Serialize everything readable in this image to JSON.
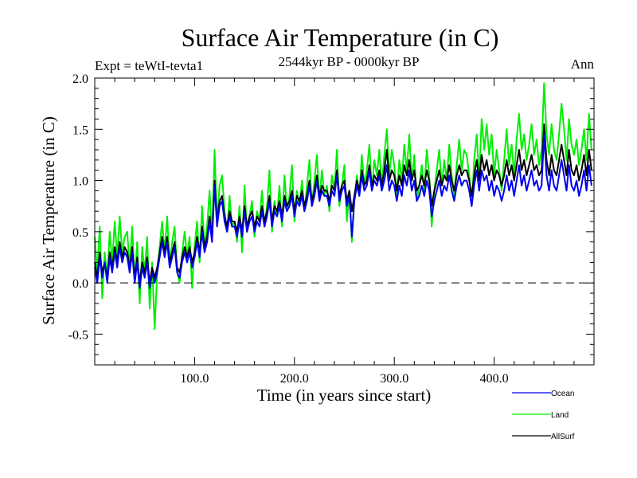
{
  "chart_data": {
    "type": "line",
    "title": "Surface Air Temperature (in C)",
    "subtitle": "2544kyr BP - 0000kyr BP",
    "left_label": "Expt = teWtI-tevta1",
    "right_label": "Ann",
    "xlabel": "Time (in years since start)",
    "ylabel": "Surface Air Temperature (in C)",
    "xlim": [
      0,
      500
    ],
    "ylim": [
      -0.8,
      2.0
    ],
    "x_ticks": [
      100,
      200,
      300,
      400
    ],
    "x_tick_labels": [
      "100.0",
      "200.0",
      "300.0",
      "400.0"
    ],
    "x_minor_step": 20,
    "y_ticks": [
      -0.5,
      0.0,
      0.5,
      1.0,
      1.5,
      2.0
    ],
    "y_tick_labels": [
      "-0.5",
      "0.0",
      "0.5",
      "1.0",
      "1.5",
      "2.0"
    ],
    "y_minor_step": 0.1,
    "reference_line": {
      "y": 0.0,
      "style": "dashed"
    },
    "grid": false,
    "legend": {
      "placement": "bottom-right",
      "entries": [
        "Ocean",
        "Land",
        "AllSurf"
      ]
    },
    "x_step": 2.5,
    "series": [
      {
        "name": "Land",
        "color": "#00ee00",
        "values": [
          0.45,
          0.1,
          0.55,
          -0.15,
          0.3,
          0.05,
          0.5,
          0.2,
          0.6,
          0.25,
          0.65,
          0.3,
          0.45,
          0.5,
          0.15,
          0.55,
          0.0,
          0.4,
          -0.2,
          0.35,
          0.1,
          0.45,
          -0.25,
          0.2,
          -0.45,
          0.1,
          0.35,
          0.6,
          0.3,
          0.65,
          0.2,
          0.4,
          0.55,
          0.1,
          0.0,
          0.3,
          0.5,
          0.25,
          0.45,
          -0.05,
          0.35,
          0.6,
          0.2,
          0.75,
          0.35,
          0.55,
          0.9,
          0.45,
          1.3,
          0.6,
          0.95,
          1.05,
          0.7,
          0.5,
          0.85,
          0.55,
          0.6,
          0.4,
          0.75,
          0.3,
          0.95,
          0.5,
          0.65,
          0.8,
          0.45,
          0.7,
          0.6,
          0.9,
          0.55,
          0.75,
          1.1,
          0.5,
          0.8,
          0.65,
          0.95,
          0.55,
          1.05,
          0.7,
          0.85,
          1.15,
          0.6,
          0.9,
          0.75,
          1.0,
          0.7,
          0.95,
          1.2,
          0.75,
          1.0,
          1.25,
          0.8,
          1.1,
          0.85,
          0.95,
          0.7,
          1.05,
          0.9,
          1.3,
          0.75,
          0.95,
          1.15,
          0.6,
          0.9,
          0.4,
          0.8,
          1.05,
          0.85,
          1.25,
          0.95,
          1.1,
          1.35,
          0.9,
          1.2,
          1.05,
          1.3,
          0.95,
          1.25,
          1.5,
          1.05,
          1.3,
          1.15,
          0.85,
          1.2,
          1.0,
          1.35,
          1.1,
          1.45,
          1.0,
          1.25,
          0.8,
          0.95,
          1.15,
          0.9,
          1.3,
          1.05,
          0.55,
          0.9,
          1.1,
          1.3,
          0.95,
          1.2,
          1.0,
          1.35,
          1.05,
          0.85,
          1.15,
          1.4,
          1.1,
          1.3,
          1.25,
          1.05,
          0.75,
          1.2,
          1.45,
          1.0,
          1.6,
          1.3,
          1.55,
          1.25,
          1.45,
          1.05,
          1.3,
          1.1,
          0.9,
          1.2,
          1.5,
          1.15,
          1.35,
          1.05,
          1.4,
          1.65,
          1.3,
          1.45,
          1.2,
          1.35,
          1.55,
          1.25,
          1.4,
          1.15,
          1.3,
          1.95,
          1.45,
          1.25,
          1.55,
          1.3,
          1.2,
          1.45,
          1.75,
          1.5,
          1.2,
          1.6,
          1.35,
          1.25,
          1.4,
          1.15,
          1.3,
          1.5,
          1.2,
          1.65,
          1.3
        ]
      },
      {
        "name": "AllSurf",
        "color": "#000000",
        "values": [
          0.2,
          0.05,
          0.3,
          0.1,
          0.2,
          0.05,
          0.3,
          0.15,
          0.35,
          0.2,
          0.4,
          0.25,
          0.35,
          0.3,
          0.15,
          0.35,
          0.05,
          0.25,
          0.0,
          0.2,
          0.1,
          0.25,
          0.0,
          0.15,
          0.05,
          0.15,
          0.3,
          0.45,
          0.3,
          0.45,
          0.2,
          0.3,
          0.4,
          0.15,
          0.1,
          0.25,
          0.35,
          0.25,
          0.35,
          0.2,
          0.3,
          0.45,
          0.3,
          0.55,
          0.35,
          0.45,
          0.65,
          0.45,
          1.0,
          0.6,
          0.8,
          0.85,
          0.65,
          0.55,
          0.7,
          0.6,
          0.6,
          0.5,
          0.65,
          0.5,
          0.75,
          0.55,
          0.65,
          0.7,
          0.55,
          0.65,
          0.6,
          0.75,
          0.6,
          0.7,
          0.85,
          0.6,
          0.75,
          0.7,
          0.8,
          0.65,
          0.85,
          0.75,
          0.8,
          0.9,
          0.7,
          0.85,
          0.8,
          0.9,
          0.75,
          0.85,
          1.0,
          0.8,
          0.9,
          1.05,
          0.85,
          0.95,
          0.9,
          0.9,
          0.8,
          0.95,
          0.9,
          1.1,
          0.85,
          0.95,
          1.0,
          0.8,
          0.9,
          0.7,
          0.85,
          1.0,
          0.9,
          1.1,
          0.95,
          1.0,
          1.15,
          0.95,
          1.05,
          1.0,
          1.1,
          0.95,
          1.1,
          1.3,
          1.0,
          1.1,
          1.05,
          0.9,
          1.05,
          0.95,
          1.15,
          1.05,
          1.2,
          1.0,
          1.1,
          0.9,
          0.95,
          1.05,
          0.95,
          1.1,
          1.0,
          0.75,
          0.9,
          1.0,
          1.1,
          0.95,
          1.05,
          1.0,
          1.15,
          1.0,
          0.9,
          1.05,
          1.15,
          1.05,
          1.1,
          1.1,
          1.0,
          0.85,
          1.05,
          1.2,
          1.0,
          1.25,
          1.1,
          1.2,
          1.05,
          1.15,
          1.0,
          1.1,
          1.05,
          0.95,
          1.05,
          1.2,
          1.05,
          1.15,
          1.0,
          1.15,
          1.3,
          1.1,
          1.2,
          1.05,
          1.15,
          1.25,
          1.1,
          1.15,
          1.05,
          1.1,
          1.55,
          1.2,
          1.05,
          1.25,
          1.1,
          1.05,
          1.2,
          1.35,
          1.2,
          1.05,
          1.3,
          1.1,
          1.05,
          1.15,
          1.0,
          1.1,
          1.25,
          1.05,
          1.3,
          1.1
        ]
      },
      {
        "name": "Ocean",
        "color": "#0000ee",
        "values": [
          0.15,
          0.0,
          0.25,
          0.05,
          0.2,
          0.0,
          0.25,
          0.1,
          0.3,
          0.15,
          0.35,
          0.2,
          0.3,
          0.25,
          0.1,
          0.3,
          0.0,
          0.2,
          -0.05,
          0.15,
          0.05,
          0.2,
          -0.05,
          0.1,
          0.0,
          0.1,
          0.25,
          0.4,
          0.25,
          0.4,
          0.15,
          0.25,
          0.35,
          0.1,
          0.05,
          0.2,
          0.3,
          0.2,
          0.3,
          0.15,
          0.25,
          0.4,
          0.25,
          0.5,
          0.3,
          0.4,
          0.6,
          0.4,
          0.95,
          0.55,
          0.75,
          0.8,
          0.6,
          0.5,
          0.65,
          0.55,
          0.55,
          0.45,
          0.6,
          0.45,
          0.7,
          0.5,
          0.6,
          0.65,
          0.5,
          0.6,
          0.55,
          0.7,
          0.55,
          0.65,
          0.8,
          0.55,
          0.7,
          0.65,
          0.75,
          0.6,
          0.8,
          0.7,
          0.75,
          0.85,
          0.65,
          0.8,
          0.75,
          0.85,
          0.7,
          0.8,
          0.95,
          0.75,
          0.85,
          1.0,
          0.8,
          0.9,
          0.85,
          0.85,
          0.75,
          0.9,
          0.85,
          1.05,
          0.8,
          0.9,
          0.95,
          0.75,
          0.85,
          0.45,
          0.8,
          0.95,
          0.85,
          1.05,
          0.9,
          0.95,
          1.1,
          0.9,
          1.0,
          0.95,
          1.05,
          0.9,
          1.0,
          1.15,
          0.9,
          1.0,
          0.95,
          0.8,
          0.95,
          0.85,
          1.05,
          0.95,
          1.1,
          0.9,
          1.0,
          0.8,
          0.85,
          0.95,
          0.85,
          1.0,
          0.9,
          0.65,
          0.8,
          0.9,
          1.0,
          0.85,
          0.95,
          0.9,
          1.05,
          0.9,
          0.8,
          0.95,
          1.05,
          0.95,
          1.0,
          1.0,
          0.9,
          0.75,
          0.95,
          1.1,
          0.9,
          1.1,
          1.0,
          1.05,
          0.9,
          1.0,
          0.85,
          0.95,
          0.9,
          0.8,
          0.9,
          1.05,
          0.9,
          1.0,
          0.85,
          1.0,
          1.15,
          0.95,
          1.05,
          0.9,
          1.0,
          1.1,
          0.95,
          1.0,
          0.9,
          0.95,
          1.45,
          1.05,
          0.9,
          1.1,
          0.95,
          0.9,
          1.05,
          1.2,
          1.05,
          0.9,
          1.15,
          0.95,
          0.9,
          1.0,
          0.85,
          0.95,
          1.1,
          0.9,
          1.15,
          0.95
        ]
      }
    ]
  },
  "legend_items": [
    {
      "label": "Ocean",
      "color": "#0000ee"
    },
    {
      "label": "Land",
      "color": "#00ee00"
    },
    {
      "label": "AllSurf",
      "color": "#000000"
    }
  ]
}
